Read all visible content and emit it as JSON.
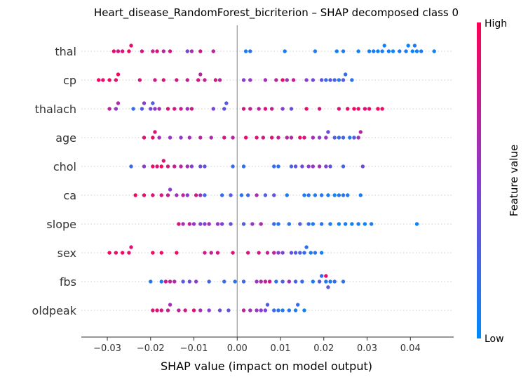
{
  "chart_data": {
    "type": "scatter",
    "title": "Heart_disease_RandomForest_bicriterion – SHAP decomposed class 0",
    "xlabel": "SHAP value (impact on model output)",
    "xlim": [
      -0.036,
      0.05
    ],
    "xticks": [
      -0.03,
      -0.02,
      -0.01,
      0.0,
      0.01,
      0.02,
      0.03,
      0.04
    ],
    "xtick_labels": [
      "−0.03",
      "−0.02",
      "−0.01",
      "0.00",
      "0.01",
      "0.02",
      "0.03",
      "0.04"
    ],
    "colorbar": {
      "label": "Feature value",
      "high": "High",
      "low": "Low",
      "high_color": "#ff0052",
      "low_color": "#008bfb"
    },
    "features": [
      {
        "name": "thal",
        "points": [
          [
            -0.0285,
            0.9
          ],
          [
            -0.0275,
            0.8
          ],
          [
            -0.0265,
            0.85
          ],
          [
            -0.025,
            0.95
          ],
          [
            -0.0245,
            0.9
          ],
          [
            -0.022,
            0.8
          ],
          [
            -0.0195,
            0.75
          ],
          [
            -0.0185,
            0.85
          ],
          [
            -0.017,
            0.7
          ],
          [
            -0.0155,
            0.8
          ],
          [
            -0.0115,
            0.45
          ],
          [
            -0.0105,
            0.6
          ],
          [
            -0.0085,
            0.8
          ],
          [
            -0.0055,
            0.7
          ],
          [
            0.002,
            0.1
          ],
          [
            0.003,
            0.15
          ],
          [
            0.011,
            0.1
          ],
          [
            0.018,
            0.1
          ],
          [
            0.023,
            0.05
          ],
          [
            0.0245,
            0.1
          ],
          [
            0.028,
            0.05
          ],
          [
            0.0305,
            0.08
          ],
          [
            0.0325,
            0.05
          ],
          [
            0.0335,
            0.1
          ],
          [
            0.035,
            0.08
          ],
          [
            0.036,
            0.05
          ],
          [
            0.0375,
            0.1
          ],
          [
            0.039,
            0.1
          ],
          [
            0.0405,
            0.05
          ],
          [
            0.0415,
            0.08
          ],
          [
            0.0425,
            0.1
          ],
          [
            0.0455,
            0.05
          ],
          [
            0.0315,
            0.1
          ],
          [
            0.034,
            0.05
          ],
          [
            0.041,
            0.1
          ],
          [
            0.0395,
            0.05
          ]
        ]
      },
      {
        "name": "cp",
        "points": [
          [
            -0.032,
            0.95
          ],
          [
            -0.031,
            0.9
          ],
          [
            -0.0295,
            0.95
          ],
          [
            -0.028,
            0.9
          ],
          [
            -0.0275,
            0.95
          ],
          [
            -0.0225,
            0.85
          ],
          [
            -0.019,
            0.8
          ],
          [
            -0.017,
            0.85
          ],
          [
            -0.014,
            0.8
          ],
          [
            -0.0115,
            0.75
          ],
          [
            -0.009,
            0.8
          ],
          [
            -0.0085,
            0.7
          ],
          [
            -0.0075,
            0.75
          ],
          [
            -0.005,
            0.8
          ],
          [
            -0.004,
            0.7
          ],
          [
            0.0015,
            0.5
          ],
          [
            0.003,
            0.55
          ],
          [
            0.0065,
            0.6
          ],
          [
            0.009,
            0.7
          ],
          [
            0.0105,
            0.9
          ],
          [
            0.0115,
            0.6
          ],
          [
            0.013,
            0.75
          ],
          [
            0.016,
            0.5
          ],
          [
            0.0175,
            0.4
          ],
          [
            0.0195,
            0.35
          ],
          [
            0.0205,
            0.2
          ],
          [
            0.0215,
            0.3
          ],
          [
            0.0225,
            0.25
          ],
          [
            0.0235,
            0.15
          ],
          [
            0.0245,
            0.3
          ],
          [
            0.025,
            0.2
          ],
          [
            0.0265,
            0.15
          ]
        ]
      },
      {
        "name": "thalach",
        "points": [
          [
            -0.0295,
            0.7
          ],
          [
            -0.028,
            0.5
          ],
          [
            -0.0275,
            0.65
          ],
          [
            -0.024,
            0.2
          ],
          [
            -0.022,
            0.3
          ],
          [
            -0.0215,
            0.5
          ],
          [
            -0.02,
            0.4
          ],
          [
            -0.0195,
            0.3
          ],
          [
            -0.019,
            0.55
          ],
          [
            -0.018,
            0.6
          ],
          [
            -0.016,
            0.85
          ],
          [
            -0.0145,
            0.8
          ],
          [
            -0.013,
            0.75
          ],
          [
            -0.0115,
            0.6
          ],
          [
            -0.0105,
            0.8
          ],
          [
            -0.0055,
            0.45
          ],
          [
            -0.003,
            0.35
          ],
          [
            -0.0025,
            0.3
          ],
          [
            0.0015,
            0.8
          ],
          [
            0.003,
            0.75
          ],
          [
            0.005,
            0.7
          ],
          [
            0.0065,
            0.85
          ],
          [
            0.008,
            0.75
          ],
          [
            0.0105,
            0.5
          ],
          [
            0.0125,
            0.4
          ],
          [
            0.016,
            0.9
          ],
          [
            0.019,
            0.8
          ],
          [
            0.0235,
            0.85
          ],
          [
            0.0255,
            0.9
          ],
          [
            0.027,
            0.95
          ],
          [
            0.028,
            0.9
          ],
          [
            0.0295,
            0.85
          ],
          [
            0.0305,
            0.9
          ],
          [
            0.0325,
            0.95
          ],
          [
            0.0335,
            0.9
          ]
        ]
      },
      {
        "name": "age",
        "points": [
          [
            -0.0215,
            0.85
          ],
          [
            -0.0195,
            0.9
          ],
          [
            -0.019,
            0.85
          ],
          [
            -0.018,
            0.6
          ],
          [
            -0.0155,
            0.55
          ],
          [
            -0.013,
            0.5
          ],
          [
            -0.011,
            0.6
          ],
          [
            -0.0085,
            0.7
          ],
          [
            -0.006,
            0.65
          ],
          [
            -0.003,
            0.8
          ],
          [
            -0.001,
            0.7
          ],
          [
            0.002,
            0.9
          ],
          [
            0.0045,
            0.85
          ],
          [
            0.006,
            0.8
          ],
          [
            0.008,
            0.85
          ],
          [
            0.0095,
            0.75
          ],
          [
            0.0115,
            0.7
          ],
          [
            0.0125,
            0.65
          ],
          [
            0.0145,
            0.9
          ],
          [
            0.0155,
            0.85
          ],
          [
            0.0175,
            0.6
          ],
          [
            0.019,
            0.5
          ],
          [
            0.0205,
            0.55
          ],
          [
            0.021,
            0.4
          ],
          [
            0.0225,
            0.3
          ],
          [
            0.0235,
            0.2
          ],
          [
            0.0245,
            0.25
          ],
          [
            0.026,
            0.15
          ],
          [
            0.027,
            0.3
          ],
          [
            0.028,
            0.6
          ],
          [
            0.0285,
            0.7
          ]
        ]
      },
      {
        "name": "chol",
        "points": [
          [
            -0.0245,
            0.2
          ],
          [
            -0.0215,
            0.5
          ],
          [
            -0.0195,
            0.9
          ],
          [
            -0.0185,
            0.85
          ],
          [
            -0.0175,
            0.95
          ],
          [
            -0.017,
            0.85
          ],
          [
            -0.016,
            0.8
          ],
          [
            -0.0145,
            0.75
          ],
          [
            -0.013,
            0.7
          ],
          [
            -0.0115,
            0.6
          ],
          [
            -0.0105,
            0.5
          ],
          [
            -0.0085,
            0.4
          ],
          [
            -0.0075,
            0.35
          ],
          [
            -0.001,
            0.2
          ],
          [
            0.0015,
            0.15
          ],
          [
            0.0085,
            0.2
          ],
          [
            0.0095,
            0.15
          ],
          [
            0.0125,
            0.25
          ],
          [
            0.0135,
            0.35
          ],
          [
            0.015,
            0.4
          ],
          [
            0.0165,
            0.5
          ],
          [
            0.0175,
            0.55
          ],
          [
            0.019,
            0.6
          ],
          [
            0.0205,
            0.45
          ],
          [
            0.0215,
            0.35
          ],
          [
            0.0245,
            0.25
          ],
          [
            0.029,
            0.4
          ]
        ]
      },
      {
        "name": "ca",
        "points": [
          [
            -0.0235,
            0.95
          ],
          [
            -0.0215,
            0.9
          ],
          [
            -0.0195,
            0.85
          ],
          [
            -0.0175,
            0.8
          ],
          [
            -0.016,
            0.75
          ],
          [
            -0.0155,
            0.5
          ],
          [
            -0.014,
            0.6
          ],
          [
            -0.0125,
            0.7
          ],
          [
            -0.0115,
            0.5
          ],
          [
            -0.0095,
            0.8
          ],
          [
            -0.0085,
            0.6
          ],
          [
            -0.0075,
            0.25
          ],
          [
            -0.0035,
            0.2
          ],
          [
            -0.0015,
            0.3
          ],
          [
            0.001,
            0.15
          ],
          [
            0.0025,
            0.2
          ],
          [
            0.0045,
            0.65
          ],
          [
            0.0065,
            0.3
          ],
          [
            0.0085,
            0.35
          ],
          [
            0.0115,
            0.1
          ],
          [
            0.0155,
            0.1
          ],
          [
            0.0165,
            0.15
          ],
          [
            0.018,
            0.1
          ],
          [
            0.0195,
            0.15
          ],
          [
            0.021,
            0.1
          ],
          [
            0.0225,
            0.05
          ],
          [
            0.0235,
            0.1
          ],
          [
            0.0245,
            0.15
          ],
          [
            0.0255,
            0.1
          ],
          [
            0.0285,
            0.1
          ]
        ]
      },
      {
        "name": "slope",
        "points": [
          [
            -0.0135,
            0.85
          ],
          [
            -0.0125,
            0.6
          ],
          [
            -0.011,
            0.7
          ],
          [
            -0.01,
            0.55
          ],
          [
            -0.0085,
            0.45
          ],
          [
            -0.0075,
            0.5
          ],
          [
            -0.0065,
            0.6
          ],
          [
            -0.0045,
            0.55
          ],
          [
            -0.0035,
            0.45
          ],
          [
            -0.0015,
            0.4
          ],
          [
            0.0015,
            0.3
          ],
          [
            0.0035,
            0.55
          ],
          [
            0.0055,
            0.65
          ],
          [
            0.0085,
            0.2
          ],
          [
            0.0095,
            0.15
          ],
          [
            0.012,
            0.15
          ],
          [
            0.0145,
            0.3
          ],
          [
            0.0165,
            0.2
          ],
          [
            0.0175,
            0.1
          ],
          [
            0.0195,
            0.15
          ],
          [
            0.0215,
            0.1
          ],
          [
            0.0235,
            0.05
          ],
          [
            0.025,
            0.1
          ],
          [
            0.0265,
            0.05
          ],
          [
            0.028,
            0.1
          ],
          [
            0.0295,
            0.05
          ],
          [
            0.031,
            0.1
          ],
          [
            0.0415,
            0.05
          ]
        ]
      },
      {
        "name": "sex",
        "points": [
          [
            -0.0295,
            0.95
          ],
          [
            -0.028,
            0.9
          ],
          [
            -0.0265,
            0.95
          ],
          [
            -0.025,
            0.9
          ],
          [
            -0.0245,
            0.85
          ],
          [
            -0.0195,
            0.95
          ],
          [
            -0.0175,
            0.9
          ],
          [
            -0.014,
            0.95
          ],
          [
            -0.0075,
            0.8
          ],
          [
            -0.006,
            0.75
          ],
          [
            -0.0045,
            0.8
          ],
          [
            -0.001,
            0.85
          ],
          [
            0.0025,
            0.85
          ],
          [
            0.005,
            0.8
          ],
          [
            0.007,
            0.75
          ],
          [
            0.0085,
            0.7
          ],
          [
            0.0095,
            0.5
          ],
          [
            0.0105,
            0.45
          ],
          [
            0.0125,
            0.35
          ],
          [
            0.0135,
            0.3
          ],
          [
            0.0145,
            0.25
          ],
          [
            0.0155,
            0.2
          ],
          [
            0.016,
            0.15
          ],
          [
            0.017,
            0.1
          ],
          [
            0.018,
            0.15
          ],
          [
            0.0195,
            0.1
          ]
        ]
      },
      {
        "name": "fbs",
        "points": [
          [
            -0.02,
            0.15
          ],
          [
            -0.0175,
            0.1
          ],
          [
            -0.0165,
            0.8
          ],
          [
            -0.0155,
            0.7
          ],
          [
            -0.0145,
            0.65
          ],
          [
            -0.0125,
            0.3
          ],
          [
            -0.011,
            0.4
          ],
          [
            -0.0095,
            0.5
          ],
          [
            -0.0065,
            0.25
          ],
          [
            -0.003,
            0.2
          ],
          [
            -0.0005,
            0.15
          ],
          [
            0.0015,
            0.2
          ],
          [
            0.0045,
            0.55
          ],
          [
            0.0055,
            0.65
          ],
          [
            0.0065,
            0.7
          ],
          [
            0.0075,
            0.8
          ],
          [
            0.009,
            0.15
          ],
          [
            0.0105,
            0.3
          ],
          [
            0.012,
            0.6
          ],
          [
            0.0135,
            0.25
          ],
          [
            0.015,
            0.2
          ],
          [
            0.0175,
            0.1
          ],
          [
            0.0195,
            0.2
          ],
          [
            0.0205,
            0.15
          ],
          [
            0.0215,
            0.1
          ],
          [
            0.0225,
            0.2
          ],
          [
            0.0245,
            0.15
          ],
          [
            0.0205,
            0.9
          ],
          [
            0.019,
            0.3
          ],
          [
            0.021,
            0.35
          ]
        ]
      },
      {
        "name": "oldpeak",
        "points": [
          [
            -0.0195,
            0.85
          ],
          [
            -0.0185,
            0.9
          ],
          [
            -0.0175,
            0.8
          ],
          [
            -0.016,
            0.75
          ],
          [
            -0.0155,
            0.6
          ],
          [
            -0.0135,
            0.7
          ],
          [
            -0.012,
            0.8
          ],
          [
            -0.01,
            0.85
          ],
          [
            -0.0085,
            0.6
          ],
          [
            -0.0065,
            0.5
          ],
          [
            -0.004,
            0.4
          ],
          [
            -0.002,
            0.35
          ],
          [
            0.0015,
            0.7
          ],
          [
            0.003,
            0.6
          ],
          [
            0.0045,
            0.55
          ],
          [
            0.0055,
            0.5
          ],
          [
            0.0065,
            0.45
          ],
          [
            0.007,
            0.3
          ],
          [
            0.0085,
            0.2
          ],
          [
            0.0095,
            0.15
          ],
          [
            0.0105,
            0.1
          ],
          [
            0.012,
            0.15
          ],
          [
            0.0135,
            0.1
          ],
          [
            0.0155,
            0.05
          ],
          [
            0.014,
            0.2
          ]
        ]
      }
    ]
  }
}
